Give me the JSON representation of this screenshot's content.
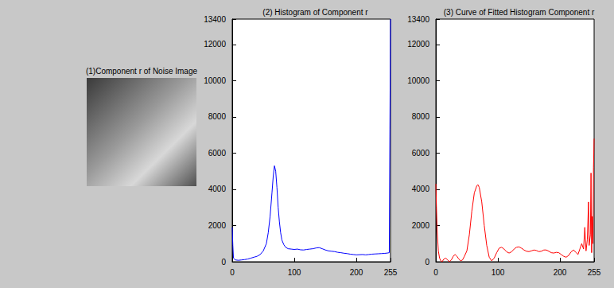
{
  "chart_data": [
    {
      "type": "image",
      "title": "(1)Component r of Noise Image"
    },
    {
      "type": "line",
      "title": "(2) Histogram of Component r",
      "color": "#0000ff",
      "grid": false,
      "xlim": [
        0,
        255
      ],
      "xticks": [
        0,
        100,
        200
      ],
      "ylim": [
        0,
        13400
      ],
      "yticks": [
        0,
        2000,
        4000,
        6000,
        8000,
        10000,
        12000
      ],
      "x": [
        0,
        1,
        2,
        5,
        10,
        15,
        20,
        25,
        30,
        35,
        40,
        45,
        50,
        55,
        58,
        61,
        64,
        66,
        68,
        70,
        72,
        74,
        76,
        78,
        80,
        83,
        86,
        90,
        95,
        100,
        105,
        110,
        115,
        120,
        125,
        130,
        135,
        140,
        145,
        150,
        155,
        160,
        165,
        170,
        175,
        180,
        185,
        190,
        195,
        200,
        205,
        210,
        215,
        220,
        225,
        230,
        235,
        240,
        245,
        250,
        253,
        254,
        255
      ],
      "values": [
        1900,
        900,
        200,
        100,
        80,
        100,
        120,
        150,
        200,
        250,
        300,
        400,
        600,
        1000,
        1600,
        2500,
        3800,
        4700,
        5300,
        5000,
        4100,
        3000,
        2200,
        1600,
        1200,
        950,
        800,
        720,
        700,
        680,
        700,
        660,
        650,
        680,
        700,
        720,
        760,
        780,
        720,
        650,
        600,
        580,
        560,
        520,
        500,
        470,
        450,
        420,
        400,
        380,
        390,
        400,
        380,
        400,
        420,
        430,
        440,
        450,
        460,
        480,
        500,
        7300,
        13400
      ]
    },
    {
      "type": "line",
      "title": "(3) Curve of Fitted Histogram Component r",
      "color": "#ff0000",
      "grid": false,
      "xlim": [
        0,
        255
      ],
      "xticks": [
        0,
        100,
        200
      ],
      "ylim": [
        0,
        13400
      ],
      "yticks": [
        0,
        2000,
        4000,
        6000,
        8000,
        10000,
        12000
      ],
      "x": [
        0,
        1,
        2,
        4,
        6,
        8,
        10,
        13,
        16,
        19,
        22,
        25,
        28,
        31,
        34,
        37,
        40,
        43,
        46,
        50,
        54,
        58,
        62,
        66,
        68,
        70,
        74,
        78,
        82,
        86,
        90,
        94,
        98,
        102,
        106,
        110,
        114,
        118,
        122,
        126,
        130,
        134,
        138,
        142,
        146,
        150,
        154,
        158,
        162,
        166,
        170,
        174,
        178,
        182,
        186,
        190,
        194,
        198,
        202,
        206,
        210,
        214,
        218,
        222,
        226,
        229,
        232,
        235,
        238,
        240,
        242,
        244,
        246,
        247,
        249,
        250,
        251,
        252,
        253,
        254,
        255
      ],
      "values": [
        4300,
        3000,
        1800,
        600,
        200,
        50,
        0,
        150,
        200,
        100,
        0,
        100,
        300,
        400,
        300,
        150,
        50,
        100,
        300,
        600,
        1500,
        2800,
        3800,
        4200,
        4250,
        4100,
        3300,
        2000,
        900,
        250,
        50,
        200,
        500,
        750,
        800,
        700,
        550,
        480,
        550,
        700,
        800,
        820,
        750,
        650,
        580,
        560,
        600,
        650,
        620,
        560,
        580,
        650,
        650,
        580,
        500,
        480,
        520,
        500,
        400,
        300,
        250,
        350,
        550,
        650,
        500,
        400,
        700,
        1000,
        700,
        1900,
        600,
        1200,
        3300,
        900,
        1500,
        4900,
        500,
        2500,
        1000,
        5200,
        6800
      ]
    }
  ]
}
